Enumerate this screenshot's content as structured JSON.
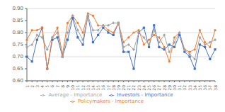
{
  "chart_data": {
    "type": "line",
    "categories": [
      "1",
      "2",
      "3",
      "4",
      "5",
      "6",
      "7",
      "8",
      "9",
      "10",
      "11",
      "12",
      "13",
      "14",
      "15",
      "16",
      "17",
      "18",
      "19",
      "20",
      "21",
      "22",
      "23",
      "24",
      "25",
      "26",
      "27",
      "28",
      "29",
      "30",
      "31",
      "32",
      "33",
      "34",
      "35",
      "36",
      "37",
      "38"
    ],
    "series": [
      {
        "name": "Investors - Importance",
        "color": "#4472C4",
        "marker": "square",
        "values": [
          0.7,
          0.68,
          0.77,
          0.82,
          0.65,
          0.77,
          0.78,
          0.7,
          0.77,
          0.86,
          0.78,
          0.75,
          0.87,
          0.76,
          0.79,
          0.82,
          0.8,
          0.79,
          0.84,
          0.72,
          0.72,
          0.65,
          0.8,
          0.82,
          0.74,
          0.83,
          0.74,
          0.73,
          0.75,
          0.74,
          0.79,
          0.72,
          0.7,
          0.65,
          0.75,
          0.74,
          0.69,
          0.73
        ]
      },
      {
        "name": "Policymakers - Importance",
        "color": "#ED7D31",
        "marker": "circle",
        "values": [
          0.77,
          0.81,
          0.81,
          0.82,
          0.65,
          0.78,
          0.82,
          0.71,
          0.84,
          0.87,
          0.84,
          0.8,
          0.88,
          0.87,
          0.83,
          0.83,
          0.81,
          0.8,
          0.84,
          0.76,
          0.78,
          0.8,
          0.81,
          0.75,
          0.77,
          0.79,
          0.78,
          0.74,
          0.68,
          0.78,
          0.8,
          0.73,
          0.72,
          0.73,
          0.81,
          0.76,
          0.74,
          0.81
        ]
      },
      {
        "name": "Average - Importance",
        "color": "#A5A5A5",
        "marker": "diamond",
        "values": [
          0.74,
          0.75,
          0.79,
          0.78,
          0.73,
          0.78,
          0.8,
          0.7,
          0.8,
          0.87,
          0.81,
          0.77,
          0.87,
          0.81,
          0.81,
          0.83,
          0.83,
          0.84,
          0.84,
          0.74,
          0.75,
          0.73,
          0.8,
          0.78,
          0.75,
          0.81,
          0.76,
          0.79,
          0.72,
          0.76,
          0.8,
          0.73,
          0.71,
          0.69,
          0.78,
          0.75,
          0.76,
          0.77
        ]
      }
    ],
    "ylim": [
      0.6,
      0.9
    ],
    "yticks": [
      {
        "value": 0.6,
        "label": "0.60"
      },
      0.65,
      {
        "value": 0.7,
        "label": "0.70"
      },
      0.75,
      {
        "value": 0.8,
        "label": "0.80"
      },
      0.85,
      {
        "value": 0.9,
        "label": "0.90"
      }
    ],
    "grid": true
  }
}
